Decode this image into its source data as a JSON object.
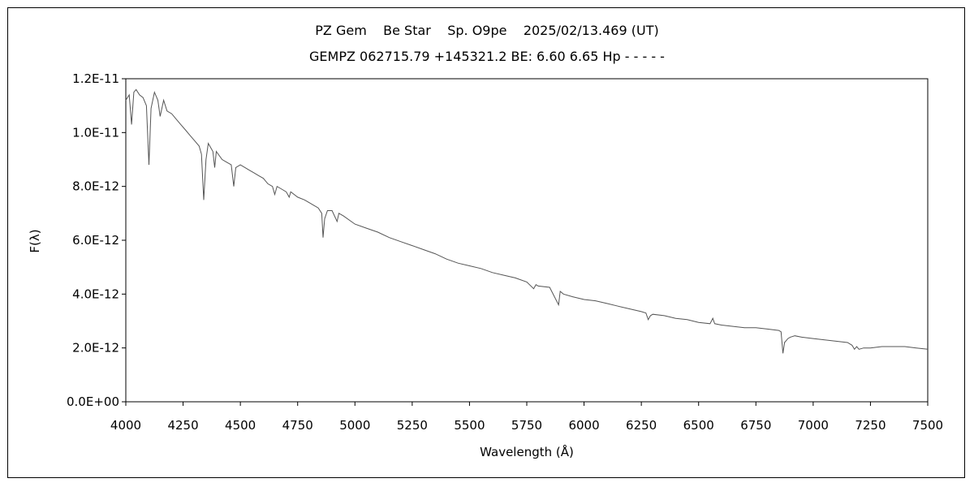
{
  "chart_data": {
    "type": "line",
    "title": "PZ Gem    Be Star    Sp. O9pe    2025/02/13.469 (UT)",
    "subtitle": "GEMPZ 062715.79 +145321.2 BE: 6.60 6.65 Hp - - - - -",
    "xlabel": "Wavelength (Å)",
    "ylabel": "F(λ)",
    "xlim": [
      4000,
      7500
    ],
    "ylim": [
      0,
      1.2e-11
    ],
    "xticks": [
      "4000",
      "4250",
      "4500",
      "4750",
      "5000",
      "5250",
      "5500",
      "5750",
      "6000",
      "6250",
      "6500",
      "6750",
      "7000",
      "7250",
      "7500"
    ],
    "yticks": [
      "0.0E+00",
      "2.0E-12",
      "4.0E-12",
      "6.0E-12",
      "8.0E-12",
      "1.0E-11",
      "1.2E-11"
    ],
    "grid": false,
    "line_color": "#555555",
    "series": [
      {
        "x": [
          4000,
          4015,
          4025,
          4035,
          4045,
          4060,
          4075,
          4090,
          4101,
          4110,
          4125,
          4140,
          4150,
          4165,
          4180,
          4200,
          4220,
          4240,
          4260,
          4280,
          4300,
          4320,
          4330,
          4340,
          4350,
          4360,
          4380,
          4388,
          4395,
          4420,
          4440,
          4460,
          4471,
          4480,
          4500,
          4520,
          4540,
          4560,
          4580,
          4600,
          4620,
          4640,
          4650,
          4660,
          4680,
          4700,
          4713,
          4720,
          4750,
          4780,
          4800,
          4820,
          4840,
          4855,
          4861,
          4868,
          4880,
          4900,
          4922,
          4930,
          4950,
          5000,
          5050,
          5100,
          5150,
          5200,
          5250,
          5300,
          5350,
          5400,
          5450,
          5500,
          5550,
          5600,
          5650,
          5700,
          5750,
          5780,
          5790,
          5800,
          5850,
          5889,
          5896,
          5910,
          5950,
          6000,
          6050,
          6100,
          6150,
          6200,
          6250,
          6270,
          6280,
          6290,
          6300,
          6350,
          6400,
          6450,
          6500,
          6550,
          6562,
          6570,
          6600,
          6650,
          6700,
          6750,
          6800,
          6850,
          6860,
          6868,
          6875,
          6890,
          6900,
          6920,
          6950,
          7000,
          7050,
          7100,
          7150,
          7170,
          7180,
          7190,
          7200,
          7220,
          7250,
          7300,
          7350,
          7400,
          7450,
          7500
        ],
        "y": [
          1.12e-11,
          1.14e-11,
          1.03e-11,
          1.15e-11,
          1.16e-11,
          1.14e-11,
          1.13e-11,
          1.1e-11,
          8.8e-12,
          1.09e-11,
          1.15e-11,
          1.12e-11,
          1.06e-11,
          1.12e-11,
          1.08e-11,
          1.07e-11,
          1.05e-11,
          1.03e-11,
          1.01e-11,
          9.9e-12,
          9.7e-12,
          9.5e-12,
          9.2e-12,
          7.5e-12,
          9e-12,
          9.6e-12,
          9.3e-12,
          8.7e-12,
          9.3e-12,
          9e-12,
          8.9e-12,
          8.8e-12,
          8e-12,
          8.7e-12,
          8.8e-12,
          8.7e-12,
          8.6e-12,
          8.5e-12,
          8.4e-12,
          8.3e-12,
          8.1e-12,
          8e-12,
          7.7e-12,
          8e-12,
          7.9e-12,
          7.8e-12,
          7.6e-12,
          7.8e-12,
          7.6e-12,
          7.5e-12,
          7.4e-12,
          7.3e-12,
          7.2e-12,
          7e-12,
          6.1e-12,
          6.8e-12,
          7.1e-12,
          7.1e-12,
          6.7e-12,
          7e-12,
          6.9e-12,
          6.6e-12,
          6.45e-12,
          6.3e-12,
          6.1e-12,
          5.95e-12,
          5.8e-12,
          5.65e-12,
          5.5e-12,
          5.3e-12,
          5.15e-12,
          5.05e-12,
          4.95e-12,
          4.8e-12,
          4.7e-12,
          4.6e-12,
          4.45e-12,
          4.2e-12,
          4.35e-12,
          4.3e-12,
          4.25e-12,
          3.6e-12,
          4.1e-12,
          4e-12,
          3.9e-12,
          3.8e-12,
          3.75e-12,
          3.65e-12,
          3.55e-12,
          3.45e-12,
          3.35e-12,
          3.3e-12,
          3.05e-12,
          3.2e-12,
          3.25e-12,
          3.2e-12,
          3.1e-12,
          3.05e-12,
          2.95e-12,
          2.9e-12,
          3.1e-12,
          2.9e-12,
          2.85e-12,
          2.8e-12,
          2.75e-12,
          2.75e-12,
          2.7e-12,
          2.65e-12,
          2.6e-12,
          1.8e-12,
          2.2e-12,
          2.35e-12,
          2.4e-12,
          2.45e-12,
          2.4e-12,
          2.35e-12,
          2.3e-12,
          2.25e-12,
          2.2e-12,
          2.1e-12,
          1.95e-12,
          2.05e-12,
          1.95e-12,
          2e-12,
          2e-12,
          2.05e-12,
          2.05e-12,
          2.05e-12,
          2e-12,
          1.95e-12
        ]
      }
    ]
  }
}
